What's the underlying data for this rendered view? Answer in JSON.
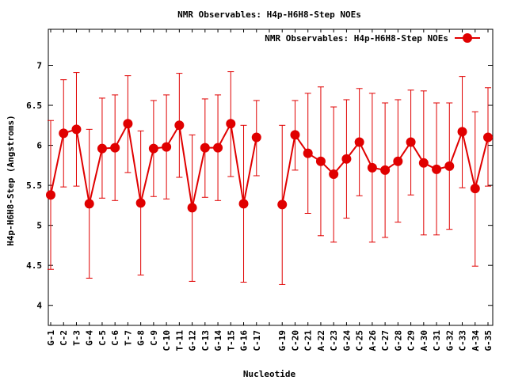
{
  "chart_data": {
    "type": "line",
    "title": "NMR Observables: H4p-H6H8-Step NOEs",
    "xlabel": "Nucleotide",
    "ylabel": "H4p-H6H8-Step (Angstroms)",
    "ylim": [
      3.75,
      7.45
    ],
    "yticks": [
      "4",
      "4.5",
      "5",
      "5.5",
      "6",
      "6.5",
      "7"
    ],
    "legend_position": "top-right",
    "grid": false,
    "categories": [
      "G-1",
      "C-2",
      "T-3",
      "G-4",
      "C-5",
      "C-6",
      "T-7",
      "G-8",
      "C-9",
      "C-10",
      "T-11",
      "G-12",
      "C-13",
      "G-14",
      "T-15",
      "G-16",
      "C-17",
      "",
      "G-19",
      "C-20",
      "C-21",
      "A-22",
      "C-23",
      "G-24",
      "C-25",
      "A-26",
      "C-27",
      "G-28",
      "C-29",
      "A-30",
      "C-31",
      "G-32",
      "C-33",
      "A-34",
      "G-35"
    ],
    "series": [
      {
        "name": "NMR Observables: H4p-H6H8-Step NOEs",
        "color": "#e00000",
        "values": [
          5.38,
          6.15,
          6.2,
          5.27,
          5.96,
          5.97,
          6.27,
          5.28,
          5.96,
          5.98,
          6.25,
          5.22,
          5.97,
          5.97,
          6.27,
          5.27,
          6.1,
          null,
          5.26,
          6.13,
          5.9,
          5.8,
          5.64,
          5.83,
          6.04,
          5.72,
          5.69,
          5.8,
          6.04,
          5.78,
          5.7,
          5.74,
          6.17,
          5.46,
          6.1
        ],
        "error_low": [
          4.45,
          5.48,
          5.49,
          4.34,
          5.34,
          5.31,
          5.66,
          4.38,
          5.36,
          5.33,
          5.6,
          4.3,
          5.35,
          5.31,
          5.61,
          4.29,
          5.62,
          null,
          4.26,
          5.69,
          5.15,
          4.87,
          4.79,
          5.09,
          5.37,
          4.79,
          4.85,
          5.04,
          5.38,
          4.88,
          4.88,
          4.95,
          5.47,
          4.49,
          5.49
        ],
        "error_high": [
          6.31,
          6.82,
          6.91,
          6.2,
          6.59,
          6.63,
          6.87,
          6.18,
          6.56,
          6.63,
          6.9,
          6.13,
          6.58,
          6.63,
          6.92,
          6.25,
          6.56,
          null,
          6.25,
          6.56,
          6.65,
          6.73,
          6.48,
          6.57,
          6.71,
          6.65,
          6.53,
          6.57,
          6.69,
          6.68,
          6.53,
          6.53,
          6.86,
          6.42,
          6.72
        ]
      }
    ]
  }
}
